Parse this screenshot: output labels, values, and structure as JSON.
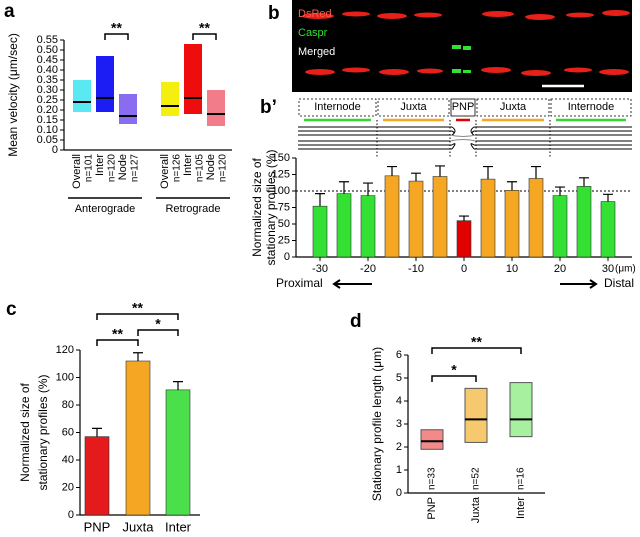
{
  "micrograph": {
    "panel_label": "b",
    "channels": [
      "DsRed",
      "Caspr",
      "Merged"
    ]
  },
  "chart_data": [
    {
      "type": "floating_bar",
      "panel_label": "a",
      "ylabel": "Mean velocity (μm/sec)",
      "categories": [
        "Overall",
        "Inter",
        "Node",
        "Overall",
        "Inter",
        "Node"
      ],
      "groups": [
        "Anterograde",
        "Retrograde"
      ],
      "counts": [
        "n=101",
        "n=120",
        "n=127",
        "n=126",
        "n=105",
        "n=120"
      ],
      "low": [
        0.19,
        0.19,
        0.13,
        0.17,
        0.18,
        0.12
      ],
      "high": [
        0.35,
        0.47,
        0.28,
        0.34,
        0.53,
        0.3
      ],
      "median": [
        0.24,
        0.26,
        0.17,
        0.22,
        0.26,
        0.18
      ],
      "colors": [
        "#5ae8f2",
        "#1c1cf5",
        "#8a6cf0",
        "#f5ef10",
        "#ee0c0c",
        "#f27c8a"
      ],
      "ylim": [
        0,
        0.55
      ],
      "yticks": [
        0,
        0.05,
        {
          "value": 0.1,
          "label": "0.10"
        },
        0.15,
        {
          "value": 0.2,
          "label": "0.20"
        },
        0.25,
        {
          "value": 0.3,
          "label": "0.30"
        },
        0.35,
        {
          "value": 0.4,
          "label": "0.40"
        },
        0.45,
        {
          "value": 0.5,
          "label": "0.50"
        },
        0.55
      ],
      "annotations": [
        "**",
        "**"
      ]
    },
    {
      "type": "bar",
      "panel_label": "b’",
      "regions": [
        "Internode",
        "Juxta",
        "PNP",
        "Juxta",
        "Internode"
      ],
      "region_colors": [
        "#33d633",
        "#f5a623",
        "#e00000",
        "#f5a623",
        "#33d633"
      ],
      "ylabel": [
        "Normalized size of",
        "stationary profiles (%)"
      ],
      "x": [
        -30,
        -25,
        -20,
        -15,
        -10,
        -5,
        0,
        5,
        10,
        15,
        20,
        25,
        30
      ],
      "values": [
        77,
        96,
        93,
        123,
        115,
        122,
        55,
        118,
        101,
        119,
        93,
        107,
        84
      ],
      "errors": [
        19,
        18,
        19,
        14,
        12,
        16,
        7,
        19,
        13,
        18,
        13,
        13,
        11
      ],
      "colors": [
        "#33e033",
        "#33e033",
        "#33e033",
        "#f5a623",
        "#f5a623",
        "#f5a623",
        "#e00000",
        "#f5a623",
        "#f5a623",
        "#f5a623",
        "#33e033",
        "#33e033",
        "#33e033"
      ],
      "xlim": [
        -35,
        35
      ],
      "xticks": [
        -30,
        -20,
        -10,
        0,
        10,
        20,
        30
      ],
      "xlabel": "(μm)",
      "ylim": [
        0,
        150
      ],
      "yticks": [
        0,
        25,
        50,
        75,
        100,
        125,
        150
      ],
      "reference_line": 100,
      "direction_labels": [
        "Proximal",
        "Distal"
      ]
    },
    {
      "type": "bar",
      "panel_label": "c",
      "ylabel": [
        "Normalized size of",
        "stationary profiles (%)"
      ],
      "categories": [
        "PNP",
        "Juxta",
        "Inter"
      ],
      "values": [
        57,
        112,
        91
      ],
      "errors": [
        6,
        6,
        6
      ],
      "colors": [
        "#e41a1c",
        "#f5a623",
        "#4be04b"
      ],
      "ylim": [
        0,
        120
      ],
      "yticks": [
        0,
        20,
        40,
        60,
        80,
        100,
        120
      ],
      "annotations": [
        "**",
        "**",
        "*"
      ]
    },
    {
      "type": "floating_bar",
      "panel_label": "d",
      "ylabel": "Stationary profile length (μm)",
      "categories": [
        "PNP",
        "Juxta",
        "Inter"
      ],
      "counts": [
        "n=33",
        "n=52",
        "n=16"
      ],
      "low": [
        1.9,
        2.2,
        2.45
      ],
      "high": [
        2.75,
        4.55,
        4.8
      ],
      "median": [
        2.25,
        3.2,
        3.2
      ],
      "colors": [
        "#f28a8a",
        "#f7c96e",
        "#a6f0a0"
      ],
      "ylim": [
        0,
        6
      ],
      "yticks": [
        0,
        1,
        2,
        3,
        4,
        5,
        6
      ],
      "annotations": [
        "**",
        "*"
      ]
    }
  ]
}
